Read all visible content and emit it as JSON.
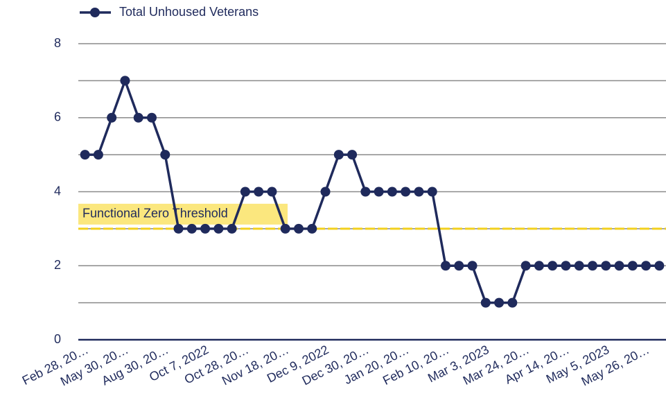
{
  "chart_data": {
    "type": "line",
    "categories": [
      "Feb 28, 20…",
      null,
      null,
      "May 30, 20…",
      null,
      null,
      "Aug 30, 20…",
      null,
      null,
      "Oct 7, 2022",
      null,
      null,
      "Oct 28, 20…",
      null,
      null,
      "Nov 18, 20…",
      null,
      null,
      "Dec 9, 2022",
      null,
      null,
      "Dec 30, 20…",
      null,
      null,
      "Jan 20, 20…",
      null,
      null,
      "Feb 10, 20…",
      null,
      null,
      "Mar 3, 2023",
      null,
      null,
      "Mar 24, 20…",
      null,
      null,
      "Apr 14, 20…",
      null,
      null,
      "May 5, 2023",
      null,
      null,
      "May 26, 20…",
      null
    ],
    "series": [
      {
        "name": "Total Unhoused Veterans",
        "color": "#1f2a5c",
        "values": [
          5,
          5,
          6,
          7,
          6,
          6,
          5,
          3,
          3,
          3,
          3,
          3,
          4,
          4,
          4,
          3,
          3,
          3,
          4,
          5,
          5,
          4,
          4,
          4,
          4,
          4,
          4,
          2,
          2,
          2,
          1,
          1,
          1,
          2,
          2,
          2,
          2,
          2,
          2,
          2,
          2,
          2,
          2,
          2
        ]
      }
    ],
    "threshold": {
      "value": 3,
      "label": "Functional Zero Threshold",
      "color": "#f2d01c"
    },
    "ylim": [
      0,
      8
    ],
    "yticks": [
      0,
      2,
      4,
      6,
      8
    ],
    "yminor": [
      1,
      3,
      5,
      7
    ],
    "grid": true,
    "legend": "top-left"
  }
}
